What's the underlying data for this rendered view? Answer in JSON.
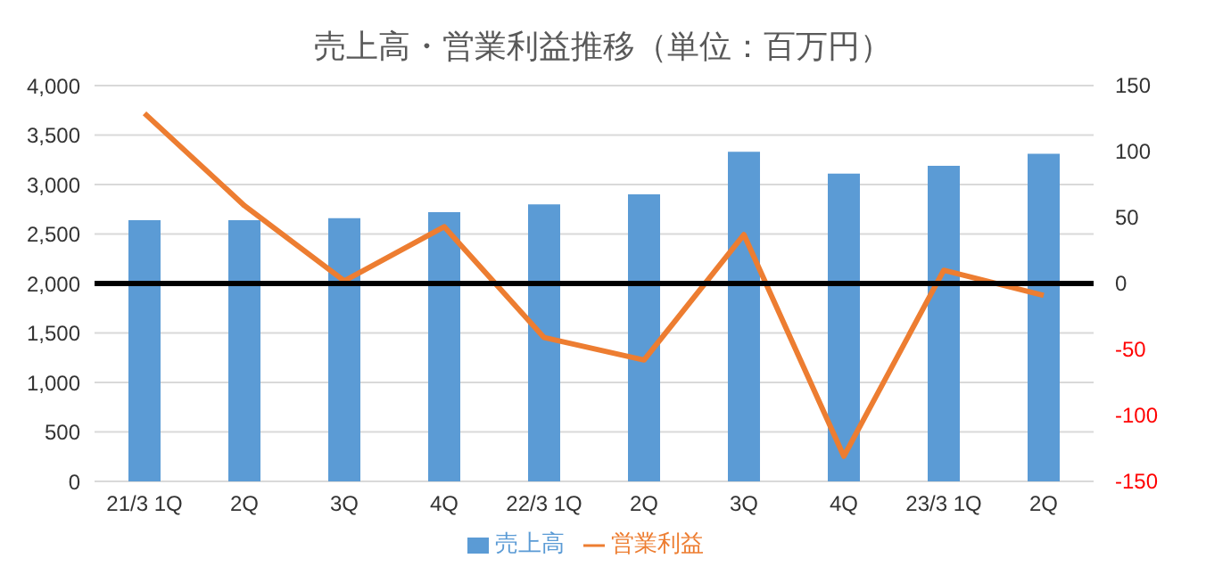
{
  "chart_data": {
    "type": "bar",
    "title": "売上高・営業利益推移（単位：百万円）",
    "categories": [
      "21/3 1Q",
      "2Q",
      "3Q",
      "4Q",
      "22/3 1Q",
      "2Q",
      "3Q",
      "4Q",
      "23/3 1Q",
      "2Q"
    ],
    "series": [
      {
        "name": "売上高",
        "color": "#5b9bd5",
        "values": [
          2640,
          2640,
          2660,
          2720,
          2800,
          2900,
          3330,
          3110,
          3190,
          3310
        ]
      },
      {
        "name": "営業利益",
        "type": "line",
        "axis": "y2",
        "color": "#ed7d31",
        "values": [
          129,
          59,
          2,
          43,
          -41,
          -58,
          37,
          -131,
          10,
          -9
        ]
      }
    ],
    "ylim": [
      0,
      4000
    ],
    "yticks": [
      {
        "value": 0,
        "label": "0"
      },
      {
        "value": 500,
        "label": "500"
      },
      {
        "value": 1000,
        "label": "1,000"
      },
      {
        "value": 1500,
        "label": "1,500"
      },
      {
        "value": 2000,
        "label": "2,000"
      },
      {
        "value": 2500,
        "label": "2,500"
      },
      {
        "value": 3000,
        "label": "3,000"
      },
      {
        "value": 3500,
        "label": "3,500"
      },
      {
        "value": 4000,
        "label": "4,000"
      }
    ],
    "y2lim": [
      -150,
      150
    ],
    "y2ticks": [
      -150,
      -100,
      -50,
      0,
      50,
      100,
      150
    ],
    "ref_lines": [
      {
        "axis": "y2",
        "value": 0,
        "color": "#000000"
      }
    ],
    "grid": "y",
    "legend": "bottom",
    "marker": "none"
  }
}
